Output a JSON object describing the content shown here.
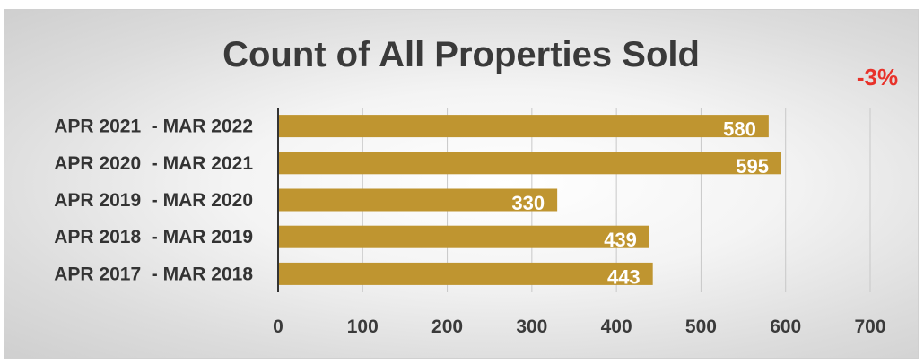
{
  "chart_data": {
    "type": "bar",
    "orientation": "horizontal",
    "title": "Count of All Properties Sold",
    "annotation": "-3%",
    "categories": [
      "APR 2021  - MAR 2022",
      "APR 2020  - MAR 2021",
      "APR 2019  - MAR 2020",
      "APR 2018  - MAR 2019",
      "APR 2017  - MAR 2018"
    ],
    "values": [
      580,
      595,
      330,
      439,
      443
    ],
    "xlim": [
      0,
      700
    ],
    "xticks": [
      0,
      100,
      200,
      300,
      400,
      500,
      600,
      700
    ],
    "xlabel": "",
    "ylabel": "",
    "grid": "vertical",
    "legend": "none",
    "bar_color": "#bf9530",
    "annotation_color": "#e8322a"
  }
}
